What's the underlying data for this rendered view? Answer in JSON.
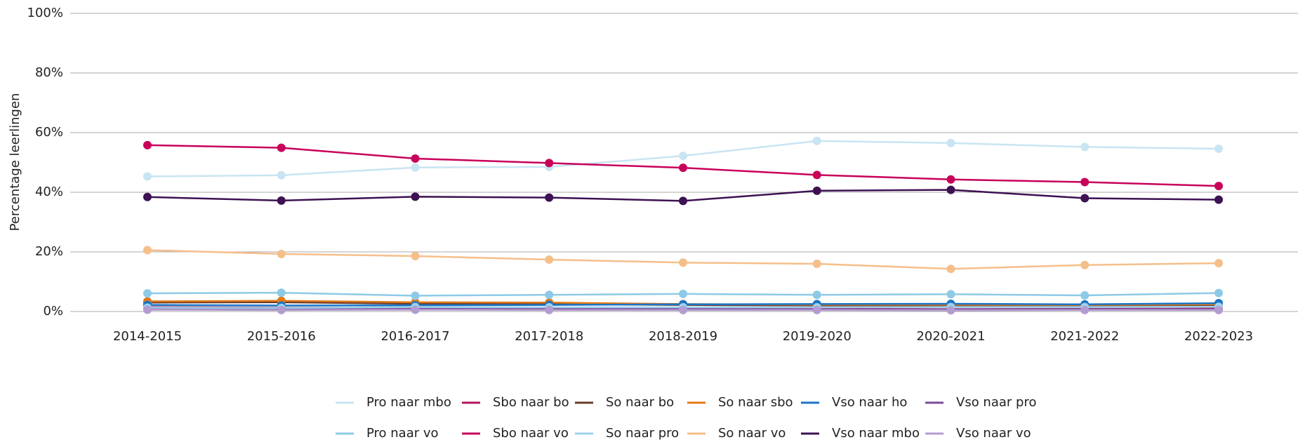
{
  "chart_data": {
    "type": "line",
    "ylabel": "Percentage leerlingen",
    "categories": [
      "2014-2015",
      "2015-2016",
      "2016-2017",
      "2017-2018",
      "2018-2019",
      "2019-2020",
      "2020-2021",
      "2021-2022",
      "2022-2023"
    ],
    "ylim": [
      0,
      100
    ],
    "yticks": [
      {
        "value": 0,
        "label": "0%"
      },
      {
        "value": 20,
        "label": "20%"
      },
      {
        "value": 40,
        "label": "40%"
      },
      {
        "value": 60,
        "label": "60%"
      },
      {
        "value": 80,
        "label": "80%"
      },
      {
        "value": 100,
        "label": "100%"
      }
    ],
    "grid": true,
    "legend": "bottom",
    "series": [
      {
        "name": "Pro naar mbo",
        "color": "#c9e4f2",
        "values": [
          45.3,
          45.7,
          48.3,
          48.5,
          52.2,
          57.2,
          56.5,
          55.2,
          54.6
        ]
      },
      {
        "name": "Sbo naar bo",
        "color": "#b5145e",
        "values": [
          1.5,
          1.3,
          1.4,
          1.2,
          1.0,
          0.9,
          0.8,
          0.9,
          1.0
        ]
      },
      {
        "name": "So naar bo",
        "color": "#6b3a2a",
        "values": [
          3.0,
          3.1,
          2.6,
          2.5,
          2.2,
          2.0,
          2.0,
          2.0,
          2.1
        ]
      },
      {
        "name": "So naar sbo",
        "color": "#e07b1a",
        "values": [
          3.4,
          3.6,
          3.1,
          3.0,
          2.5,
          2.3,
          2.3,
          2.2,
          2.4
        ]
      },
      {
        "name": "Vso naar ho",
        "color": "#1a75c7",
        "values": [
          2.2,
          2.0,
          2.1,
          2.2,
          2.4,
          2.5,
          2.6,
          2.4,
          2.8
        ]
      },
      {
        "name": "Vso naar pro",
        "color": "#7a4a9a",
        "values": [
          1.0,
          0.9,
          1.0,
          0.9,
          0.9,
          0.8,
          0.7,
          0.8,
          0.8
        ]
      },
      {
        "name": "Pro naar vo",
        "color": "#8ecae6",
        "values": [
          6.1,
          6.3,
          5.3,
          5.6,
          5.9,
          5.6,
          5.8,
          5.4,
          6.2
        ]
      },
      {
        "name": "Sbo naar vo",
        "color": "#c8005a",
        "values": [
          55.8,
          54.9,
          51.3,
          49.8,
          48.2,
          45.8,
          44.3,
          43.4,
          42.1
        ]
      },
      {
        "name": "So naar pro",
        "color": "#9dd3ec",
        "values": [
          1.3,
          1.2,
          1.5,
          1.4,
          1.4,
          1.4,
          1.5,
          1.5,
          1.6
        ]
      },
      {
        "name": "So naar vo",
        "color": "#f5bf8a",
        "values": [
          20.6,
          19.3,
          18.6,
          17.4,
          16.4,
          16.0,
          14.3,
          15.6,
          16.2
        ]
      },
      {
        "name": "Vso naar mbo",
        "color": "#3d1152",
        "values": [
          38.4,
          37.2,
          38.5,
          38.2,
          37.1,
          40.5,
          40.8,
          38.0,
          37.5
        ]
      },
      {
        "name": "Vso naar vo",
        "color": "#b39cd0",
        "values": [
          0.6,
          0.5,
          0.6,
          0.5,
          0.5,
          0.5,
          0.4,
          0.5,
          0.5
        ]
      }
    ]
  }
}
